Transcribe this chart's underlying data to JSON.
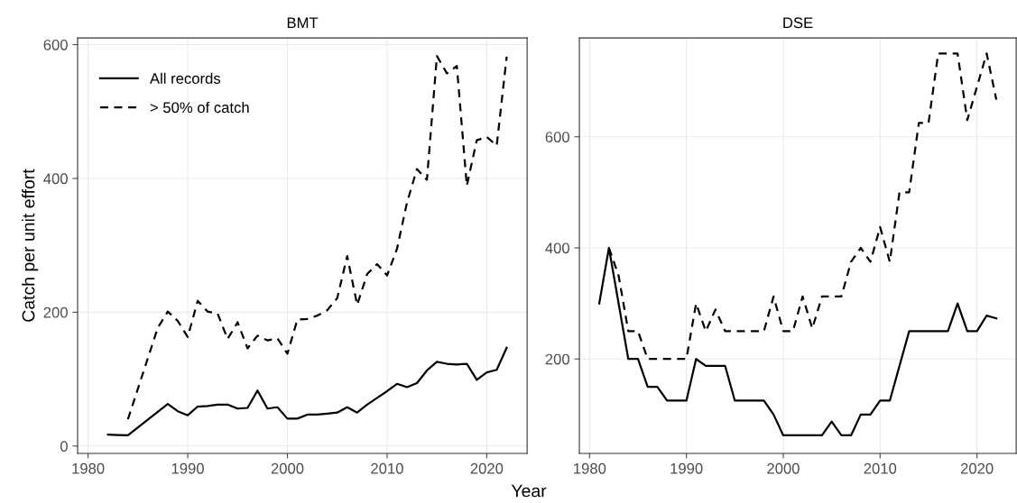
{
  "chart_data": [
    {
      "type": "line",
      "title": "BMT",
      "ylabel": "Catch per unit effort",
      "xlabel": "Year",
      "xlim": [
        1978.95,
        2024.05
      ],
      "xticks": [
        1980,
        1990,
        2000,
        2010,
        2020
      ],
      "ylim": [
        -11,
        610
      ],
      "yticks": [
        0,
        200,
        400,
        600
      ],
      "grid": true,
      "legend": "top left",
      "series": [
        {
          "name": "All records",
          "color": "#000000",
          "line_style": "solid",
          "x": [
            1982,
            1983,
            1984,
            1988,
            1989,
            1990,
            1991,
            1992,
            1993,
            1994,
            1995,
            1996,
            1997,
            1998,
            1999,
            2000,
            2001,
            2002,
            2003,
            2004,
            2005,
            2006,
            2007,
            2008,
            2009,
            2010,
            2011,
            2012,
            2013,
            2014,
            2015,
            2016,
            2017,
            2018,
            2019,
            2020,
            2021,
            2022
          ],
          "values": [
            17,
            16.5,
            16,
            63,
            52,
            46,
            59,
            60,
            62,
            62,
            56,
            57,
            83,
            56,
            58,
            41,
            41,
            47,
            47,
            48.5,
            50,
            58,
            50,
            62,
            72,
            82,
            93,
            88,
            94,
            113,
            126,
            123,
            122,
            123,
            99,
            110,
            114,
            147
          ]
        },
        {
          "name": "> 50% of catch",
          "color": "#000000",
          "line_style": "dashed",
          "x": [
            1984,
            1987,
            1988,
            1989,
            1990,
            1991,
            1992,
            1993,
            1994,
            1995,
            1996,
            1997,
            1998,
            1999,
            2000,
            2001,
            2002,
            2003,
            2004,
            2005,
            2006,
            2007,
            2008,
            2009,
            2010,
            2011,
            2012,
            2013,
            2014,
            2015,
            2016,
            2017,
            2018,
            2019,
            2020,
            2021,
            2022
          ],
          "values": [
            40,
            177,
            201,
            187,
            163,
            217,
            201,
            198,
            160,
            185,
            146,
            165,
            158,
            161,
            138,
            189,
            190,
            195,
            203,
            221,
            284,
            211,
            257,
            272,
            255,
            295,
            364,
            414,
            398,
            583,
            557,
            568,
            389,
            457,
            462,
            449,
            582
          ]
        }
      ]
    },
    {
      "type": "line",
      "title": "DSE",
      "xlim": [
        1978.95,
        2024.05
      ],
      "xticks": [
        1980,
        1990,
        2000,
        2010,
        2020
      ],
      "ylim": [
        30,
        778
      ],
      "yticks": [
        200,
        400,
        600
      ],
      "grid": true,
      "series": [
        {
          "color": "#000000",
          "line_style": "solid",
          "x": [
            1981,
            1982,
            1984,
            1985,
            1986,
            1987,
            1988,
            1989,
            1990,
            1991,
            1992,
            1993,
            1994,
            1995,
            1996,
            1997,
            1998,
            1999,
            2000,
            2001,
            2002,
            2003,
            2004,
            2005,
            2006,
            2007,
            2008,
            2009,
            2010,
            2011,
            2013,
            2014,
            2015,
            2016,
            2017,
            2018,
            2019,
            2020,
            2021,
            2022
          ],
          "values": [
            300,
            400,
            200,
            200,
            150,
            150,
            125,
            125,
            125,
            200,
            187.5,
            187.5,
            187.5,
            125,
            125,
            125,
            125,
            100,
            62.5,
            62.5,
            62.5,
            62.5,
            62.5,
            87.5,
            62.5,
            62.5,
            100,
            100,
            125,
            125,
            250,
            250,
            250,
            250,
            250,
            300,
            250,
            250,
            278,
            273
          ]
        },
        {
          "color": "#000000",
          "line_style": "dashed",
          "x": [
            1982,
            1983,
            1984,
            1985,
            1986,
            1987,
            1988,
            1989,
            1990,
            1991,
            1992,
            1993,
            1994,
            1995,
            1996,
            1997,
            1998,
            1999,
            2000,
            2001,
            2002,
            2003,
            2004,
            2005,
            2006,
            2007,
            2008,
            2009,
            2010,
            2011,
            2012,
            2013,
            2014,
            2015,
            2016,
            2017,
            2018,
            2019,
            2020,
            2021,
            2022
          ],
          "values": [
            400,
            350,
            250,
            250,
            200,
            200,
            200,
            200,
            200,
            300,
            250,
            289,
            250,
            250,
            250,
            250,
            250,
            312.5,
            250,
            250,
            312.5,
            255,
            312.5,
            312.5,
            312.5,
            375,
            400,
            375,
            437.5,
            375,
            500,
            500,
            625,
            625,
            750,
            750,
            750,
            630,
            690,
            750,
            667
          ]
        }
      ]
    }
  ]
}
